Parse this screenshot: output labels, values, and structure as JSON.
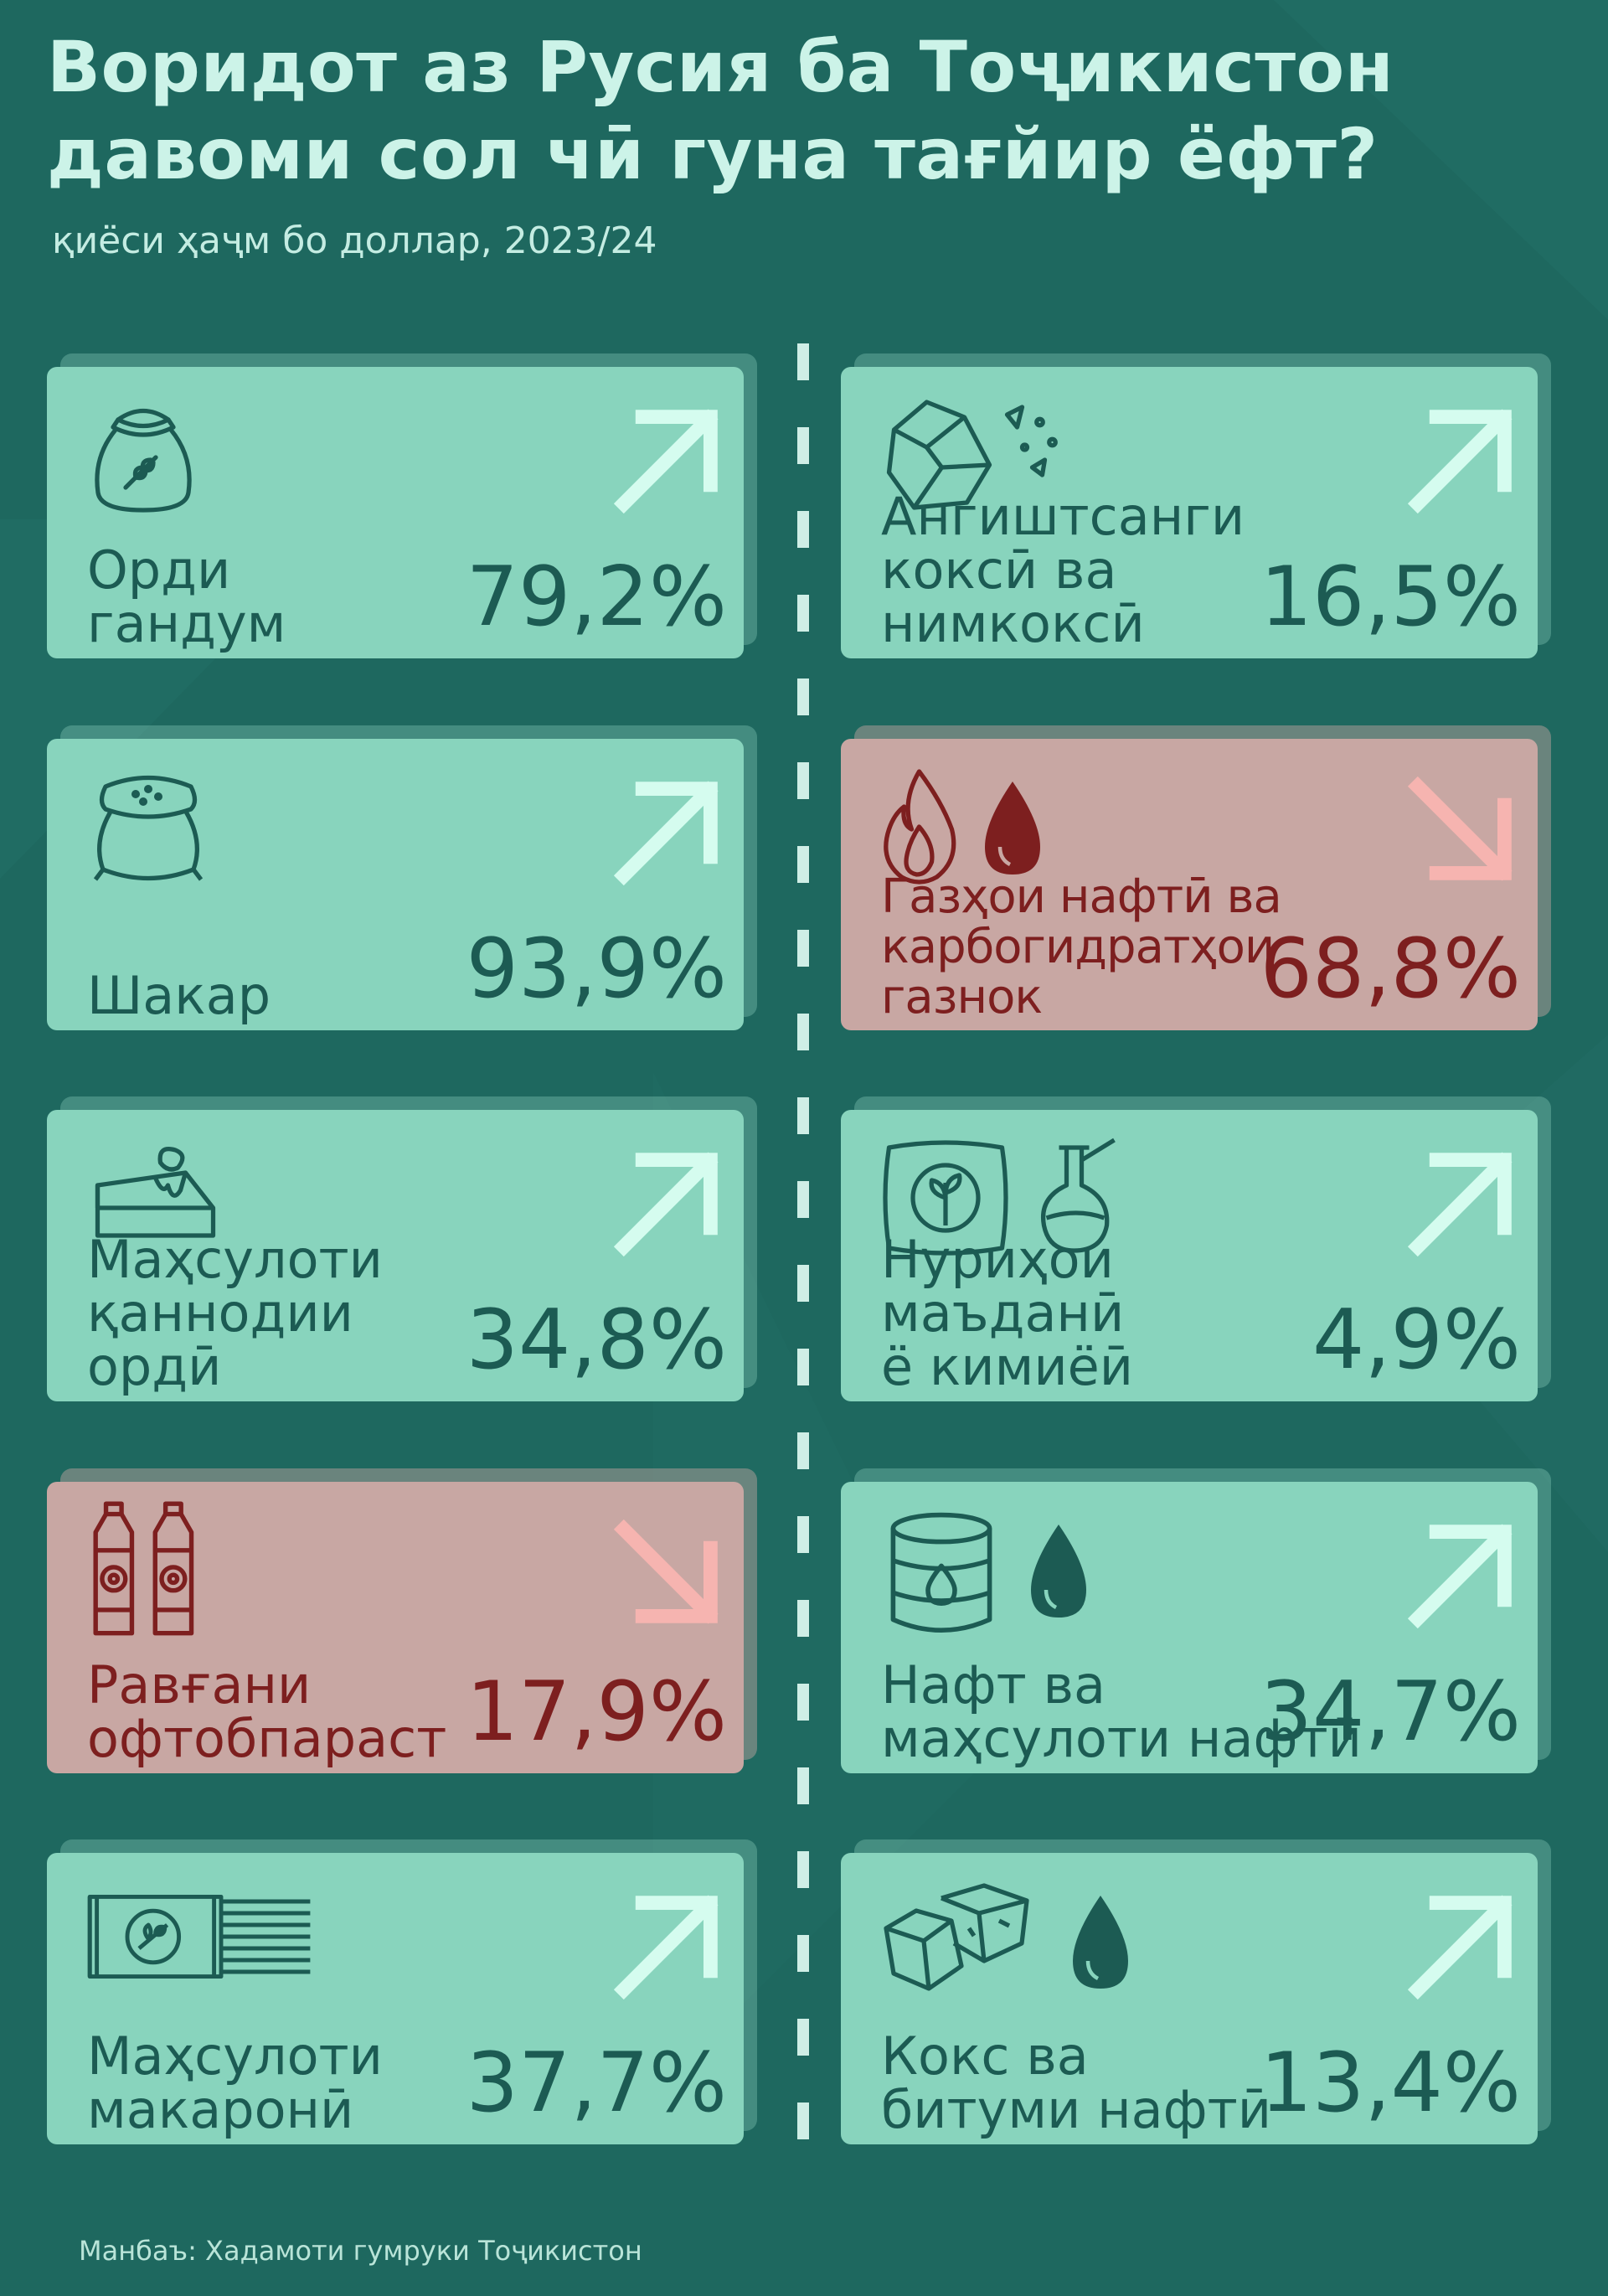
{
  "title": "Воридот аз Русия ба Тоҷикистон давоми сол чӣ гуна тағйир ёфт?",
  "subtitle": "қиёси ҳаҷм бо доллар, 2023/24",
  "source": "Манбаъ: Хадамоти гумруки Тоҷикистон",
  "colors": {
    "background": "#1e685f",
    "card_up": "#88d4bd",
    "card_down": "#c8a7a3",
    "text_up": "#1c5b53",
    "text_down": "#7d1f1f",
    "arrow_up": "#d5fcef",
    "arrow_down": "#f6b4b0"
  },
  "cards": [
    {
      "label": "Орди\nгандум",
      "value": "79,2%",
      "direction": "up",
      "icons": [
        "flour-sack-icon"
      ]
    },
    {
      "label": "Ангиштсанги\nкоксӣ ва\nнимкоксӣ",
      "value": "16,5%",
      "direction": "up",
      "icons": [
        "coal-icon"
      ]
    },
    {
      "label": "Шакар",
      "value": "93,9%",
      "direction": "up",
      "icons": [
        "sugar-sack-icon"
      ]
    },
    {
      "label": "Газҳои нафтӣ ва\nкарбогидратҳои\nгазнок",
      "value": "68,8%",
      "direction": "down",
      "icons": [
        "flame-icon",
        "drop-icon"
      ]
    },
    {
      "label": "Маҳсулоти\nқаннодии\nордӣ",
      "value": "34,8%",
      "direction": "up",
      "icons": [
        "cake-icon"
      ]
    },
    {
      "label": "Нуриҳои\nмаъданӣ\nё кимиёӣ",
      "value": "4,9%",
      "direction": "up",
      "icons": [
        "fertilizer-bag-icon",
        "flask-icon"
      ]
    },
    {
      "label": "Равғани\nофтобпараст",
      "value": "17,9%",
      "direction": "down",
      "icons": [
        "oil-bottles-icon"
      ]
    },
    {
      "label": "Нафт ва\nмаҳсулоти нафтӣ",
      "value": "34,7%",
      "direction": "up",
      "icons": [
        "barrel-icon",
        "drop-icon"
      ]
    },
    {
      "label": "Маҳсулоти\nмакаронӣ",
      "value": "37,7%",
      "direction": "up",
      "icons": [
        "pasta-pack-icon"
      ]
    },
    {
      "label": "Кокс ва\nбитуми нафтӣ",
      "value": "13,4%",
      "direction": "up",
      "icons": [
        "coke-blocks-icon",
        "drop-icon"
      ]
    }
  ]
}
